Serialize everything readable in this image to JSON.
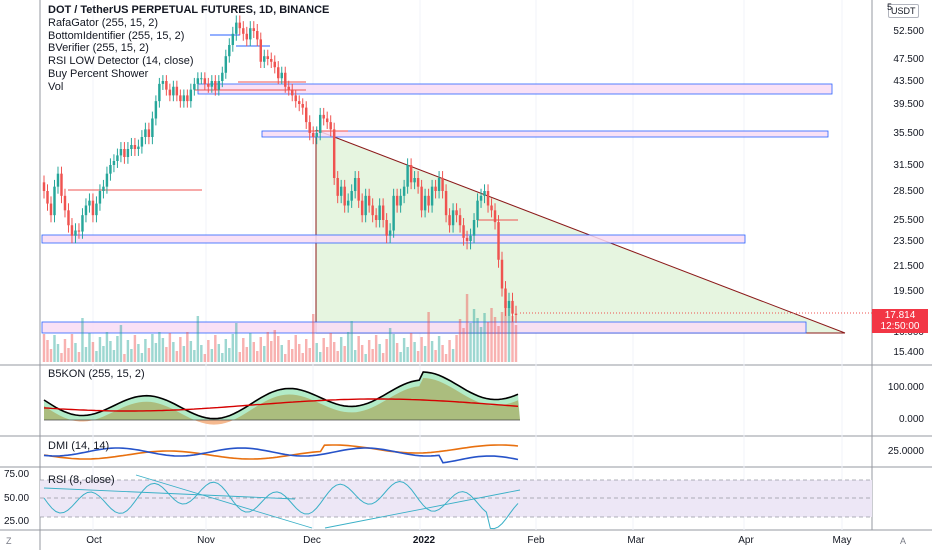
{
  "symbol_title": "DOT / TetherUS PERPETUAL FUTURES, 1D, BINANCE",
  "indicators": [
    "RafaGator (255, 15, 2)",
    "BottomIdentifier (255, 15, 2)",
    "BVerifier (255, 15, 2)",
    "RSI LOW Detector (14, close)",
    "Buy Percent Shower",
    "Vol"
  ],
  "currency": "USDT",
  "top_axis_value": "5",
  "price_axis": [
    "52.500",
    "47.500",
    "43.500",
    "39.500",
    "35.500",
    "31.500",
    "28.500",
    "25.500",
    "23.500",
    "21.500",
    "19.500",
    "16.600",
    "15.400"
  ],
  "current_price": "17.814",
  "countdown": "12:50:00",
  "panes": {
    "b5kon": {
      "label": "B5KON (255, 15, 2)",
      "axis": [
        "100.000",
        "0.000"
      ]
    },
    "dmi": {
      "label": "DMI (14, 14)",
      "axis": [
        "25.0000"
      ]
    },
    "rsi": {
      "label": "RSI (8, close)",
      "left_axis": [
        "75.00",
        "50.00",
        "25.00"
      ]
    }
  },
  "time_axis": [
    "Oct",
    "Nov",
    "Dec",
    "2022",
    "Feb",
    "Mar",
    "Apr",
    "May"
  ],
  "corner_left": "Z",
  "corner_right": "A",
  "colors": {
    "up": "#26a69a",
    "down": "#ef5350",
    "zone_fill": "#f8dcf5",
    "zone_border": "#2962ff",
    "triangle_line": "#8b1a1a",
    "triangle_fill": "#e6f5e0",
    "dmi_plus": "#e8700f",
    "dmi_minus": "#2653c9",
    "rsi": "#3ab0c7",
    "rsi_band": "#ede7f6"
  },
  "chart_data": {
    "type": "candlestick",
    "title": "DOT / TetherUS PERPETUAL FUTURES, 1D, BINANCE",
    "x_range": [
      "2021-09-18",
      "2022-05-20"
    ],
    "y_ticks": [
      15.4,
      16.6,
      19.5,
      21.5,
      23.5,
      25.5,
      28.5,
      31.5,
      35.5,
      39.5,
      43.5,
      47.5,
      52.5
    ],
    "closes": [
      28.5,
      27.2,
      26,
      29,
      30.5,
      28,
      26.5,
      25,
      24,
      24.5,
      24.4,
      26,
      27,
      27.5,
      26,
      27.2,
      28.5,
      29,
      30.5,
      31.5,
      32,
      32.7,
      33.5,
      32.5,
      33.5,
      34,
      33.5,
      33.8,
      35,
      36,
      35,
      37.5,
      40,
      43,
      43.5,
      42,
      41,
      42.5,
      41,
      40,
      41,
      40,
      42,
      43,
      44,
      44,
      43,
      42.5,
      43.5,
      42,
      43.5,
      45,
      48,
      50,
      52,
      54,
      53,
      52,
      51,
      53,
      52.5,
      51,
      47,
      48,
      47.5,
      47,
      46,
      44,
      45,
      42.5,
      42,
      41,
      40,
      39.5,
      39,
      37,
      35.5,
      35,
      35.5,
      38,
      37.5,
      37,
      36,
      30,
      28,
      29,
      27,
      27.5,
      28.5,
      30,
      27.5,
      26,
      28,
      27,
      26,
      25.5,
      27,
      25.5,
      24,
      24.5,
      28,
      27,
      28,
      29,
      31.5,
      29.5,
      30,
      29,
      26.5,
      28,
      27,
      29,
      28.5,
      30,
      28.5,
      26,
      25,
      26.5,
      26,
      25,
      23.8,
      23.5,
      24,
      25.5,
      27.5,
      28,
      28.5,
      27,
      26.5,
      25.3,
      22,
      19.7,
      18.3,
      18.8,
      17.9,
      17.8
    ],
    "volume_note": "Vol histogram shown in price pane",
    "rsi_levels": [
      75,
      50,
      25
    ]
  }
}
